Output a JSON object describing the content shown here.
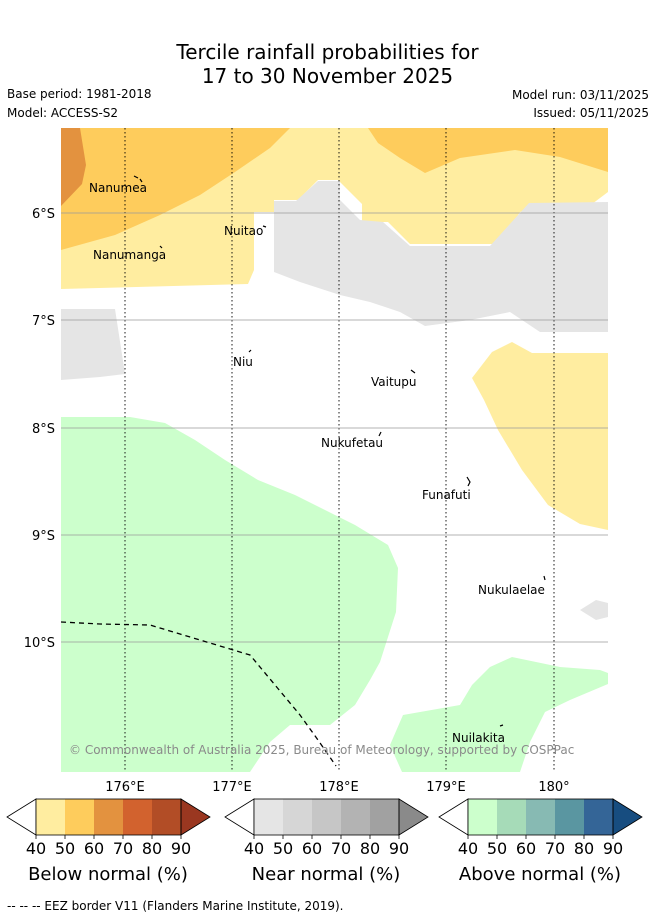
{
  "title": {
    "line1": "Tercile rainfall probabilities for",
    "line2": "17 to 30 November 2025"
  },
  "meta": {
    "base_period": "Base period: 1981-2018",
    "model": "Model: ACCESS-S2",
    "model_run": "Model run: 03/11/2025",
    "issued": "Issued: 05/11/2025"
  },
  "map": {
    "lat_labels": [
      "6°S",
      "7°S",
      "8°S",
      "9°S",
      "10°S"
    ],
    "lon_labels": [
      "176°E",
      "177°E",
      "178°E",
      "179°E",
      "180°"
    ],
    "places": [
      "Nanumea",
      "Nuitao",
      "Nanumanga",
      "Niu",
      "Vaitupu",
      "Nukufetau",
      "Funafuti",
      "Nukulaelae",
      "Nuilakita"
    ],
    "copyright": "© Commonwealth of Australia 2025, Bureau of Meteorology, supported by COSPPac"
  },
  "colorbars": [
    {
      "name": "below",
      "label": "Below normal (%)",
      "ticks": [
        "40",
        "50",
        "60",
        "70",
        "80",
        "90"
      ],
      "colors": [
        "#ffeda0",
        "#fecc5c",
        "#e3923f",
        "#d2622e",
        "#b24d26",
        "#9a3720"
      ]
    },
    {
      "name": "near",
      "label": "Near normal (%)",
      "ticks": [
        "40",
        "50",
        "60",
        "70",
        "80",
        "90"
      ],
      "colors": [
        "#e5e5e5",
        "#d6d6d6",
        "#c6c6c6",
        "#b3b3b3",
        "#a1a1a1",
        "#8a8a8a"
      ]
    },
    {
      "name": "above",
      "label": "Above normal (%)",
      "ticks": [
        "40",
        "50",
        "60",
        "70",
        "80",
        "90"
      ],
      "colors": [
        "#ccffcc",
        "#a6dbb8",
        "#87bab3",
        "#5a96a1",
        "#346597",
        "#174d80"
      ]
    }
  ],
  "footer": "--  --  -- EEZ border V11 (Flanders Marine Institute, 2019).",
  "colors": {
    "below_40": "#ffeda0",
    "below_50": "#fecc5c",
    "below_60": "#e3923f",
    "near_40": "#e5e5e5",
    "above_40": "#ccffcc"
  }
}
